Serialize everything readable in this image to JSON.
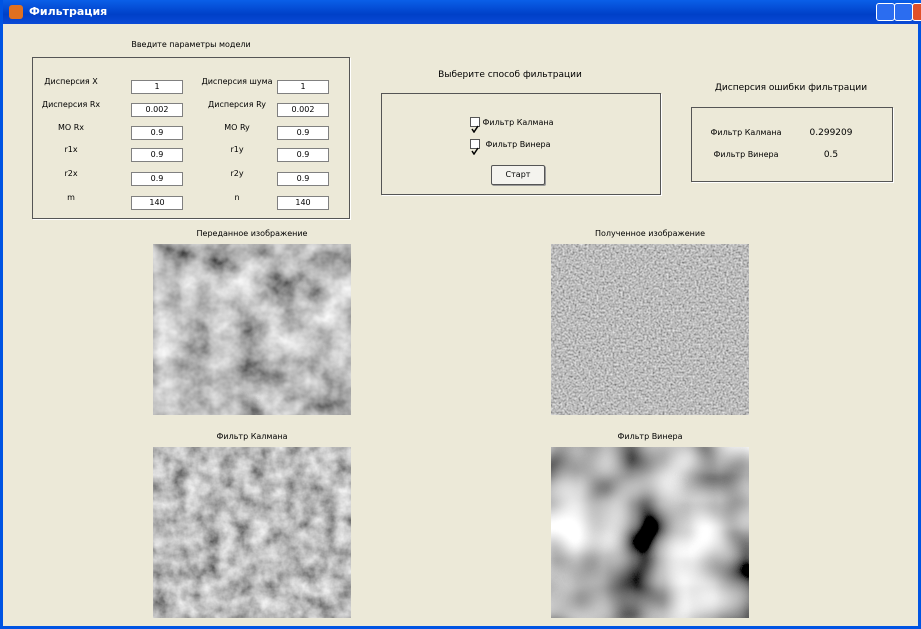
{
  "window": {
    "title": "Фильтрация"
  },
  "parameters": {
    "title": "Введите параметры модели",
    "left": [
      {
        "label": "Дисперсия Х",
        "value": "1"
      },
      {
        "label": "Дисперсия Rx",
        "value": "0.002"
      },
      {
        "label": "МО Rx",
        "value": "0.9"
      },
      {
        "label": "r1x",
        "value": "0.9"
      },
      {
        "label": "r2x",
        "value": "0.9"
      },
      {
        "label": "m",
        "value": "140"
      }
    ],
    "right": [
      {
        "label": "Дисперсия шума",
        "value": "1"
      },
      {
        "label": "Дисперсия Ry",
        "value": "0.002"
      },
      {
        "label": "МО Ry",
        "value": "0.9"
      },
      {
        "label": "r1y",
        "value": "0.9"
      },
      {
        "label": "r2y",
        "value": "0.9"
      },
      {
        "label": "n",
        "value": "140"
      }
    ]
  },
  "method": {
    "title": "Выберите способ фильтрации",
    "options": [
      "Фильтр Калмана",
      "Фильтр Винера"
    ],
    "button": "Старт"
  },
  "error": {
    "title": "Дисперсия ошибки фильтрации",
    "rows": [
      {
        "label": "Фильтр Калмана",
        "value": "0.299209"
      },
      {
        "label": "Фильтр Винера",
        "value": "0.5"
      }
    ]
  },
  "images": [
    {
      "title": "Переданное изображение"
    },
    {
      "title": "Полученное изображение"
    },
    {
      "title": "Фильтр Калмана"
    },
    {
      "title": "Фильтр Винера"
    }
  ]
}
